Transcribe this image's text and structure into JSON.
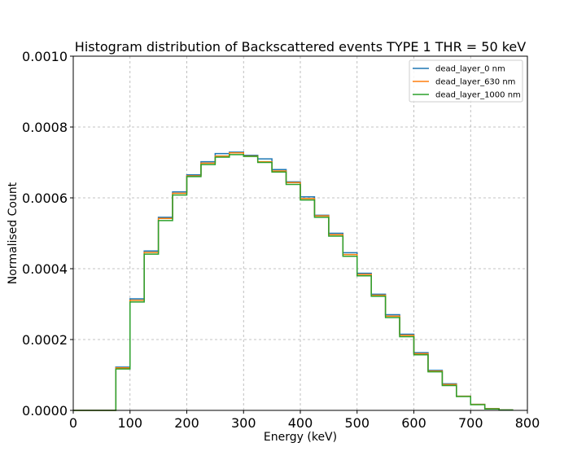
{
  "chart_data": {
    "type": "line",
    "title": "Histogram distribution of Backscattered events TYPE 1 THR = 50 keV",
    "xlabel": "Energy (keV)",
    "ylabel": "Normalised Count",
    "xlim": [
      0,
      800
    ],
    "ylim": [
      0,
      0.001
    ],
    "grid": true,
    "legend_position": "top-right",
    "x_ticks": [
      "0",
      "100",
      "200",
      "300",
      "400",
      "500",
      "600",
      "700",
      "800"
    ],
    "y_ticks": [
      "0.0000",
      "0.0002",
      "0.0004",
      "0.0006",
      "0.0008",
      "0.0010"
    ],
    "bin_edges": [
      0,
      25,
      50,
      75,
      100,
      125,
      150,
      175,
      200,
      225,
      250,
      275,
      300,
      325,
      350,
      375,
      400,
      425,
      450,
      475,
      500,
      525,
      550,
      575,
      600,
      625,
      650,
      675,
      700,
      725,
      750,
      775
    ],
    "series": [
      {
        "name": "dead_layer_0 nm",
        "color": "#1f77b4",
        "values": [
          0,
          0,
          0,
          0.000122,
          0.000315,
          0.00045,
          0.000545,
          0.000617,
          0.000665,
          0.000702,
          0.000725,
          0.000729,
          0.00072,
          0.00071,
          0.00068,
          0.000645,
          0.000603,
          0.000551,
          0.0005,
          0.000445,
          0.000387,
          0.000328,
          0.00027,
          0.000215,
          0.000163,
          0.000113,
          7.5e-05,
          4e-05,
          1.7e-05,
          5e-06,
          1e-06
        ]
      },
      {
        "name": "dead_layer_630 nm",
        "color": "#ff7f0e",
        "values": [
          0,
          0,
          0,
          0.00012,
          0.000311,
          0.000446,
          0.000542,
          0.000613,
          0.000662,
          0.000698,
          0.000718,
          0.000727,
          0.000718,
          0.000702,
          0.000676,
          0.000643,
          0.000598,
          0.000549,
          0.000496,
          0.00044,
          0.000384,
          0.000325,
          0.000266,
          0.000212,
          0.00016,
          0.000111,
          7.3e-05,
          4e-05,
          1.7e-05,
          5e-06,
          1e-06
        ]
      },
      {
        "name": "dead_layer_1000 nm",
        "color": "#2ca02c",
        "values": [
          0,
          0,
          0,
          0.000117,
          0.000306,
          0.000441,
          0.000536,
          0.000608,
          0.00066,
          0.000694,
          0.000715,
          0.000722,
          0.000717,
          0.0007,
          0.000673,
          0.000638,
          0.000594,
          0.000545,
          0.000492,
          0.000435,
          0.00038,
          0.000322,
          0.000262,
          0.000208,
          0.000157,
          0.000109,
          7e-05,
          3.9e-05,
          1.6e-05,
          4e-06,
          1e-06
        ]
      }
    ]
  }
}
